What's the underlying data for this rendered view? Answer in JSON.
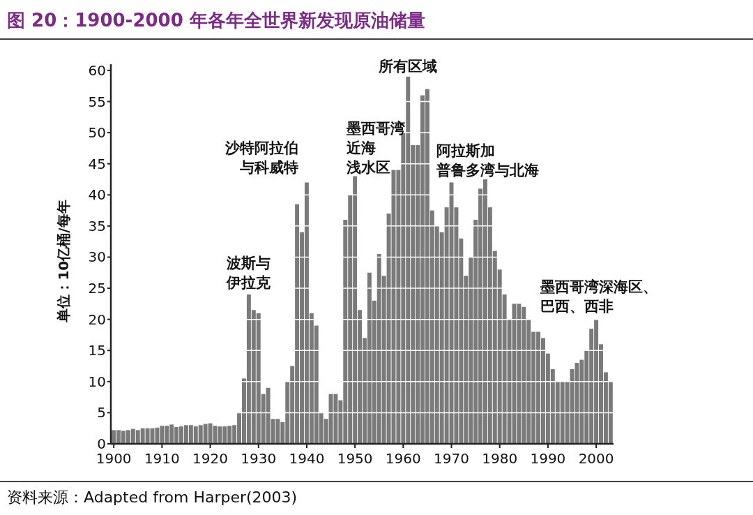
{
  "chart_data": {
    "type": "bar",
    "title": "图 20：1900-2000 年各年全世界新发现原油储量",
    "ylabel": "单位：10亿桶/每年",
    "annotations": [
      {
        "text": "波斯与伊拉克",
        "x": 1928,
        "y": 24
      },
      {
        "text": "沙特阿拉伯与科威特",
        "x": 1940,
        "y": 42
      },
      {
        "text": "墨西哥湾近海浅水区",
        "x": 1950,
        "y": 43
      },
      {
        "text": "所有区域",
        "x": 1961,
        "y": 59
      },
      {
        "text": "阿拉斯加普鲁多湾与北海",
        "x": 1977,
        "y": 42.5
      },
      {
        "text": "墨西哥湾深海区、巴西、西非",
        "x": 2000,
        "y": 20
      },
      "资料来源：Adapted from Harper(2003)"
    ],
    "x": [
      1900,
      1901,
      1902,
      1903,
      1904,
      1905,
      1906,
      1907,
      1908,
      1909,
      1910,
      1911,
      1912,
      1913,
      1914,
      1915,
      1916,
      1917,
      1918,
      1919,
      1920,
      1921,
      1922,
      1923,
      1924,
      1925,
      1926,
      1927,
      1928,
      1929,
      1930,
      1931,
      1932,
      1933,
      1934,
      1935,
      1936,
      1937,
      1938,
      1939,
      1940,
      1941,
      1942,
      1943,
      1944,
      1945,
      1946,
      1947,
      1948,
      1949,
      1950,
      1951,
      1952,
      1953,
      1954,
      1955,
      1956,
      1957,
      1958,
      1959,
      1960,
      1961,
      1962,
      1963,
      1964,
      1965,
      1966,
      1967,
      1968,
      1969,
      1970,
      1971,
      1972,
      1973,
      1974,
      1975,
      1976,
      1977,
      1978,
      1979,
      1980,
      1981,
      1982,
      1983,
      1984,
      1985,
      1986,
      1987,
      1988,
      1989,
      1990,
      1991,
      1992,
      1993,
      1994,
      1995,
      1996,
      1997,
      1998,
      1999,
      2000,
      2001,
      2002,
      2003
    ],
    "values": [
      2.2,
      2.2,
      2.1,
      2.2,
      2.4,
      2.2,
      2.5,
      2.5,
      2.5,
      2.6,
      2.9,
      2.9,
      3.1,
      2.7,
      2.8,
      3.0,
      3.0,
      2.8,
      3.0,
      3.2,
      3.3,
      2.9,
      2.8,
      2.8,
      2.9,
      3.0,
      5,
      10.5,
      24,
      21.5,
      21,
      8,
      9,
      4,
      4,
      3.5,
      10,
      12.5,
      38.5,
      34,
      42,
      21,
      19,
      5,
      4,
      8,
      8,
      7,
      36,
      40,
      43,
      21.5,
      17,
      27.5,
      23,
      30.5,
      27,
      37,
      44,
      44,
      50,
      59,
      48,
      48,
      56,
      57,
      37.5,
      35,
      34,
      38,
      42,
      38,
      33,
      27,
      30,
      36,
      41,
      42.5,
      38,
      31,
      28,
      24,
      20,
      22.5,
      22.5,
      22,
      20,
      18,
      18,
      17,
      14.5,
      12,
      10,
      10,
      10,
      12,
      13,
      13.5,
      15,
      18.5,
      20,
      16,
      11.5,
      10
    ],
    "color": "#7a7a7a",
    "xlim": [
      1899.4,
      2003.6
    ],
    "ylim": [
      0,
      61
    ],
    "xticks": [
      1900,
      1910,
      1920,
      1930,
      1940,
      1950,
      1960,
      1970,
      1980,
      1990,
      2000
    ],
    "yticks": [
      0,
      5,
      10,
      15,
      20,
      25,
      30,
      35,
      40,
      45,
      50,
      55,
      60
    ],
    "grid": "y"
  }
}
